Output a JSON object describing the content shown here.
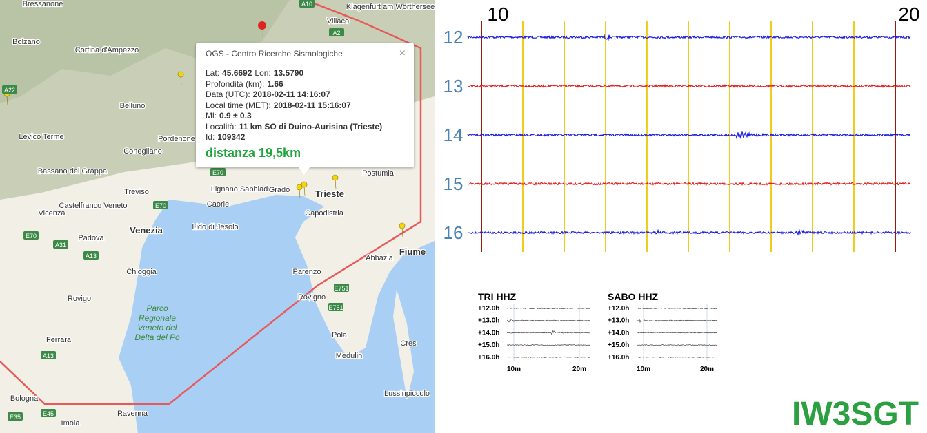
{
  "map": {
    "places": [
      "Bressanone",
      "Bolzano",
      "Cortina d'Ampezzo",
      "Belluno",
      "Levico Terme",
      "Conegliano",
      "Pordenone",
      "Bassano del Grappa",
      "Treviso",
      "Castelfranco Veneto",
      "Vicenza",
      "Padova",
      "Venezia",
      "Lido di Jesolo",
      "Caorle",
      "Lignano Sabbiadoro",
      "Grado",
      "Trieste",
      "Capodistria",
      "Postumia",
      "Chioggia",
      "Rovigo",
      "Ferrara",
      "Bologna",
      "Imola",
      "Ravenna",
      "Parenzo",
      "Rovigno",
      "Pola",
      "Medulin",
      "Fiume",
      "Abbazia",
      "Cres",
      "Lussinpiccolo",
      "Klagenfurt am Wörthersee",
      "Villaco"
    ],
    "park": [
      "Parco",
      "Regionale",
      "Veneto del",
      "Delta del Po"
    ],
    "roads": [
      "A10",
      "A2",
      "A22",
      "E70",
      "E70",
      "E70",
      "A31",
      "A13",
      "A13",
      "E45",
      "E35",
      "E751",
      "E751"
    ]
  },
  "popup": {
    "title": "OGS - Centro Ricerche Sismologiche",
    "close": "×",
    "lines": [
      [
        {
          "label": "Lat:",
          "value": "45.6692"
        },
        {
          "label": "Lon:",
          "value": "13.5790"
        }
      ],
      [
        {
          "label": "Profondità (km):",
          "value": "1.66"
        }
      ],
      [
        {
          "label": "Data (UTC):",
          "value": "2018-02-11 14:16:07"
        }
      ],
      [
        {
          "label": "Local time (MET):",
          "value": "2018-02-11 15:16:07"
        }
      ],
      [
        {
          "label": "Ml:",
          "value": "0.9 ± 0.3"
        }
      ],
      [
        {
          "label": "Località:",
          "value": "11 km SO di Duino-Aurisina (Trieste)"
        }
      ],
      [
        {
          "label": "Id:",
          "value": "109342"
        }
      ]
    ],
    "distance": "distanza 19,5km"
  },
  "seismogram": {
    "minutes": [
      "10",
      "20"
    ],
    "hours": [
      "12",
      "13",
      "14",
      "15",
      "16"
    ]
  },
  "panels": [
    {
      "title": "TRI HHZ",
      "rows": [
        "+12.0h",
        "+13.0h",
        "+14.0h",
        "+15.0h",
        "+16.0h"
      ],
      "xlabels": [
        "10m",
        "20m"
      ]
    },
    {
      "title": "SABO HHZ",
      "rows": [
        "+12.0h",
        "+13.0h",
        "+14.0h",
        "+15.0h",
        "+16.0h"
      ],
      "xlabels": [
        "10m",
        "20m"
      ]
    }
  ],
  "callsign": "IW3SGT"
}
